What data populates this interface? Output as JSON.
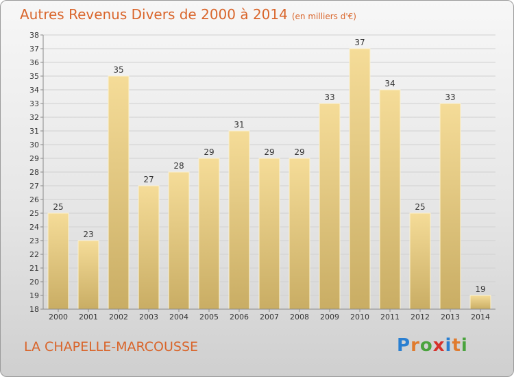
{
  "title": "Autres Revenus Divers de 2000 à 2014",
  "subtitle": "(en milliers d'€)",
  "place": "LA CHAPELLE-MARCOUSSE",
  "logo": {
    "letters": [
      "P",
      "r",
      "o",
      "x",
      "i",
      "t",
      "i"
    ],
    "colors": [
      "#2a7fd1",
      "#e07b2e",
      "#4aa33e",
      "#d6312b",
      "#2a7fd1",
      "#e07b2e",
      "#4aa33e"
    ]
  },
  "chart_data": {
    "type": "bar",
    "categories": [
      "2000",
      "2001",
      "2002",
      "2003",
      "2004",
      "2005",
      "2006",
      "2007",
      "2008",
      "2009",
      "2010",
      "2011",
      "2012",
      "2013",
      "2014"
    ],
    "values": [
      25,
      23,
      35,
      27,
      28,
      29,
      31,
      29,
      29,
      33,
      37,
      34,
      25,
      33,
      19
    ],
    "ylim": [
      18,
      38
    ],
    "yticks": [
      18,
      19,
      20,
      21,
      22,
      23,
      24,
      25,
      26,
      27,
      28,
      29,
      30,
      31,
      32,
      33,
      34,
      35,
      36,
      37,
      38
    ],
    "grid": true,
    "bar_color": "#e3c97e"
  }
}
